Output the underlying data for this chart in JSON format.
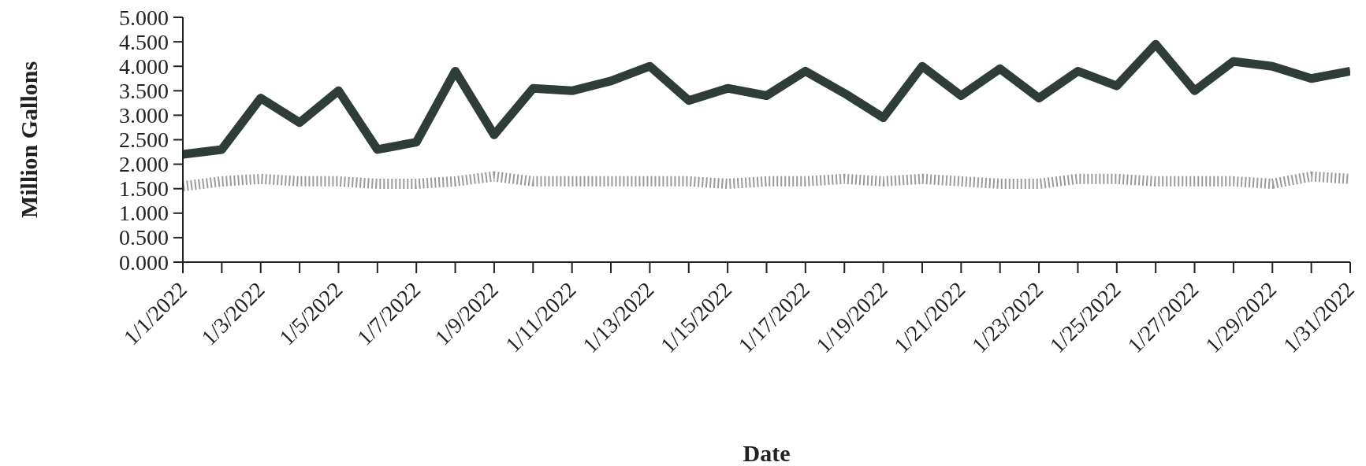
{
  "chart_data": {
    "type": "line",
    "xlabel": "Date",
    "ylabel": "Million Gallons",
    "x": [
      "2022-01-01",
      "2022-01-02",
      "2022-01-03",
      "2022-01-04",
      "2022-01-05",
      "2022-01-06",
      "2022-01-07",
      "2022-01-08",
      "2022-01-09",
      "2022-01-10",
      "2022-01-11",
      "2022-01-12",
      "2022-01-13",
      "2022-01-14",
      "2022-01-15",
      "2022-01-16",
      "2022-01-17",
      "2022-01-18",
      "2022-01-19",
      "2022-01-20",
      "2022-01-21",
      "2022-01-22",
      "2022-01-23",
      "2022-01-24",
      "2022-01-25",
      "2022-01-26",
      "2022-01-27",
      "2022-01-28",
      "2022-01-29",
      "2022-01-30",
      "2022-01-31"
    ],
    "series": [
      {
        "color": "#2f3d3a",
        "line_style": "solid",
        "values": [
          2.2,
          2.3,
          3.35,
          2.85,
          3.5,
          2.3,
          2.45,
          3.9,
          2.6,
          3.55,
          3.5,
          3.7,
          4.0,
          3.3,
          3.55,
          3.4,
          3.9,
          3.45,
          2.95,
          4.0,
          3.4,
          3.95,
          3.35,
          3.9,
          3.6,
          4.45,
          3.5,
          4.1,
          4.0,
          3.75,
          3.9
        ]
      },
      {
        "color": "#9a9a9a",
        "line_style": "dotted",
        "values": [
          1.55,
          1.65,
          1.7,
          1.65,
          1.65,
          1.6,
          1.6,
          1.65,
          1.75,
          1.65,
          1.65,
          1.65,
          1.65,
          1.65,
          1.6,
          1.65,
          1.65,
          1.7,
          1.65,
          1.7,
          1.65,
          1.6,
          1.6,
          1.7,
          1.7,
          1.65,
          1.65,
          1.65,
          1.6,
          1.75,
          1.7
        ]
      }
    ],
    "xlim": [
      "2022-01-01",
      "2022-01-31"
    ],
    "xticks": [
      {
        "value": "2022-01-01",
        "label": "1/1/2022"
      },
      {
        "value": "2022-01-02",
        "label": null
      },
      {
        "value": "2022-01-03",
        "label": "1/3/2022"
      },
      {
        "value": "2022-01-04",
        "label": null
      },
      {
        "value": "2022-01-05",
        "label": "1/5/2022"
      },
      {
        "value": "2022-01-06",
        "label": null
      },
      {
        "value": "2022-01-07",
        "label": "1/7/2022"
      },
      {
        "value": "2022-01-08",
        "label": null
      },
      {
        "value": "2022-01-09",
        "label": "1/9/2022"
      },
      {
        "value": "2022-01-10",
        "label": null
      },
      {
        "value": "2022-01-11",
        "label": "1/11/2022"
      },
      {
        "value": "2022-01-12",
        "label": null
      },
      {
        "value": "2022-01-13",
        "label": "1/13/2022"
      },
      {
        "value": "2022-01-14",
        "label": null
      },
      {
        "value": "2022-01-15",
        "label": "1/15/2022"
      },
      {
        "value": "2022-01-16",
        "label": null
      },
      {
        "value": "2022-01-17",
        "label": "1/17/2022"
      },
      {
        "value": "2022-01-18",
        "label": null
      },
      {
        "value": "2022-01-19",
        "label": "1/19/2022"
      },
      {
        "value": "2022-01-20",
        "label": null
      },
      {
        "value": "2022-01-21",
        "label": "1/21/2022"
      },
      {
        "value": "2022-01-22",
        "label": null
      },
      {
        "value": "2022-01-23",
        "label": "1/23/2022"
      },
      {
        "value": "2022-01-24",
        "label": null
      },
      {
        "value": "2022-01-25",
        "label": "1/25/2022"
      },
      {
        "value": "2022-01-26",
        "label": null
      },
      {
        "value": "2022-01-27",
        "label": "1/27/2022"
      },
      {
        "value": "2022-01-28",
        "label": null
      },
      {
        "value": "2022-01-29",
        "label": "1/29/2022"
      },
      {
        "value": "2022-01-30",
        "label": null
      },
      {
        "value": "2022-01-31",
        "label": "1/31/2022"
      }
    ],
    "ylim": [
      0,
      5
    ],
    "yticks": [
      {
        "value": 0,
        "label": "0.000"
      },
      {
        "value": 0.5,
        "label": "0.500"
      },
      {
        "value": 1,
        "label": "1.000"
      },
      {
        "value": 1.5,
        "label": "1.500"
      },
      {
        "value": 2,
        "label": "2.000"
      },
      {
        "value": 2.5,
        "label": "2.500"
      },
      {
        "value": 3,
        "label": "3.000"
      },
      {
        "value": 3.5,
        "label": "3.500"
      },
      {
        "value": 4,
        "label": "4.000"
      },
      {
        "value": 4.5,
        "label": "4.500"
      },
      {
        "value": 5,
        "label": "5.000"
      }
    ],
    "grid": false,
    "legend": false
  }
}
